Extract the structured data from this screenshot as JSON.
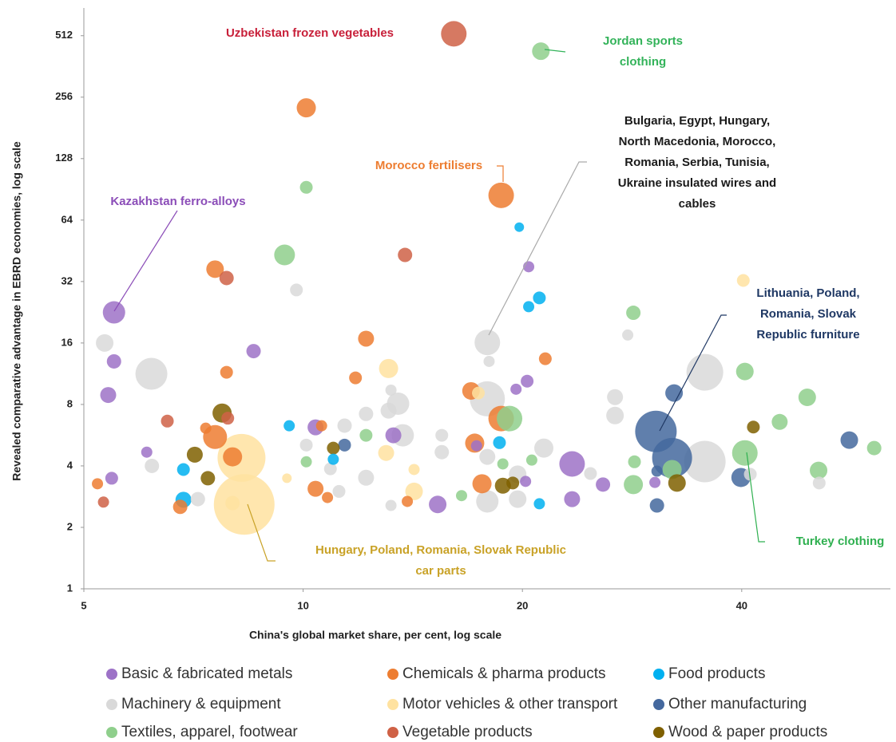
{
  "chart_data": {
    "type": "bubble",
    "x_label": "China's global market share, per cent, log scale",
    "y_label": "Revealed comparative advantage in EBRD economies, log scale",
    "xlog": true,
    "ylog": true,
    "xlim": [
      5,
      64
    ],
    "ylim": [
      1,
      700
    ],
    "xticks": [
      5,
      10,
      20,
      40
    ],
    "yticks": [
      1,
      2,
      4,
      8,
      16,
      32,
      64,
      128,
      256,
      512
    ],
    "series": [
      {
        "name": "Basic & fabricated metals",
        "color": "#9d72c7",
        "x": [
          5.5,
          5.5,
          5.4,
          5.46,
          6.1,
          8.55,
          10.4,
          13.3,
          15.3,
          17.3,
          19.6,
          20.3,
          20.4,
          20.2,
          23.4,
          23.4,
          25.8,
          30.4
        ],
        "values": [
          22.6,
          13.0,
          8.9,
          3.48,
          4.67,
          14.6,
          6.18,
          5.65,
          2.59,
          5.02,
          9.5,
          10.4,
          37.8,
          3.36,
          4.09,
          2.75,
          3.24,
          3.32
        ],
        "sizes": [
          14,
          9,
          10,
          8,
          7,
          9,
          10,
          10,
          11,
          7,
          7,
          8,
          7,
          7,
          16,
          10,
          9,
          7
        ]
      },
      {
        "name": "Chemicals & pharma products",
        "color": "#ed7d31",
        "x": [
          10.1,
          18.7,
          7.57,
          7.85,
          12.2,
          11.8,
          21.5,
          17.0,
          7.57,
          8.0,
          7.35,
          18.7,
          17.2,
          17.6,
          10.4,
          5.22,
          6.78,
          10.8,
          13.9,
          10.6
        ],
        "values": [
          227,
          84.6,
          36.8,
          11.5,
          16.8,
          10.8,
          13.4,
          9.32,
          5.54,
          4.43,
          6.12,
          6.82,
          5.17,
          3.27,
          3.09,
          3.27,
          2.52,
          2.8,
          2.68,
          6.29
        ],
        "sizes": [
          12,
          16,
          11,
          8,
          10,
          8,
          8,
          11,
          15,
          12,
          7,
          16,
          12,
          12,
          10,
          7,
          9,
          7,
          7,
          7
        ]
      },
      {
        "name": "Food products",
        "color": "#00b0f0",
        "x": [
          19.8,
          21.1,
          20.4,
          9.57,
          18.6,
          11.0,
          6.85,
          6.85,
          21.1
        ],
        "values": [
          59.1,
          26.6,
          24.1,
          6.29,
          5.2,
          4.31,
          3.84,
          2.73,
          2.61
        ],
        "sizes": [
          6,
          8,
          7,
          7,
          8,
          7,
          8,
          10,
          7
        ]
      },
      {
        "name": "Machinery & equipment",
        "color": "#d9d9d9",
        "x": [
          5.34,
          6.19,
          9.79,
          17.9,
          17.9,
          17.9,
          27.9,
          35.6,
          35.6,
          26.8,
          26.8,
          21.4,
          13.5,
          13.1,
          13.7,
          11.4,
          12.2,
          10.1,
          6.2,
          7.17,
          12.2,
          10.9,
          11.2,
          13.2,
          15.5,
          15.5,
          17.9,
          19.7,
          19.7,
          24.8,
          41.1,
          51.1,
          18.0,
          13.2
        ],
        "values": [
          16.0,
          11.3,
          29.1,
          16.1,
          8.52,
          2.68,
          17.5,
          11.5,
          4.2,
          8.69,
          7.06,
          4.89,
          8.07,
          7.46,
          5.65,
          6.3,
          7.19,
          5.06,
          4.0,
          2.75,
          3.5,
          3.87,
          3.0,
          2.56,
          5.65,
          4.67,
          4.43,
          3.64,
          2.75,
          3.67,
          3.64,
          3.3,
          13.0,
          9.4
        ],
        "sizes": [
          11,
          20,
          8,
          16,
          22,
          14,
          7,
          23,
          26,
          10,
          11,
          12,
          14,
          10,
          14,
          9,
          9,
          8,
          9,
          9,
          10,
          8,
          8,
          7,
          8,
          9,
          10,
          11,
          11,
          8,
          8,
          8,
          7,
          7
        ]
      },
      {
        "name": "Motor vehicles & other transport",
        "color": "#ffe2a0",
        "x": [
          8.23,
          8.3,
          13.1,
          13.0,
          40.2,
          14.2,
          14.2,
          9.5,
          8.0,
          17.4
        ],
        "values": [
          4.38,
          2.59,
          12.0,
          4.63,
          32.4,
          3.84,
          3.0,
          3.48,
          2.63,
          9.1
        ],
        "sizes": [
          30,
          38,
          12,
          10,
          8,
          7,
          11,
          6,
          9,
          8
        ]
      },
      {
        "name": "Other manufacturing",
        "color": "#44689e",
        "x": [
          30.5,
          32.1,
          32.3,
          56.2,
          39.9,
          30.6,
          11.4,
          30.6
        ],
        "values": [
          5.9,
          4.38,
          9.1,
          5.35,
          3.51,
          2.56,
          5.06,
          3.77
        ],
        "sizes": [
          26,
          25,
          11,
          11,
          12,
          9,
          8,
          7
        ]
      },
      {
        "name": "Textiles, apparel, footwear",
        "color": "#8fcf8c",
        "x": [
          21.2,
          10.1,
          9.43,
          28.4,
          40.4,
          49.2,
          45.1,
          19.2,
          12.2,
          40.4,
          60.8,
          51.0,
          32.1,
          28.5,
          28.4,
          10.1,
          18.8,
          20.6,
          16.5
        ],
        "values": [
          430,
          92.6,
          43.2,
          22.5,
          11.6,
          8.67,
          6.57,
          6.82,
          5.65,
          4.63,
          4.89,
          3.8,
          3.84,
          4.19,
          3.24,
          4.19,
          4.09,
          4.27,
          2.86
        ],
        "sizes": [
          11,
          8,
          13,
          9,
          11,
          11,
          10,
          16,
          8,
          16,
          9,
          11,
          12,
          8,
          12,
          7,
          7,
          7,
          7
        ]
      },
      {
        "name": "Vegetable products",
        "color": "#cf6146",
        "x": [
          16.1,
          13.8,
          7.85,
          6.51,
          5.32,
          7.88
        ],
        "values": [
          523,
          43.2,
          33.3,
          6.63,
          2.66,
          6.85
        ],
        "sizes": [
          16,
          9,
          9,
          8,
          7,
          8
        ]
      },
      {
        "name": "Wood & paper products",
        "color": "#7f6000",
        "x": [
          7.74,
          7.1,
          7.4,
          11.0,
          18.8,
          19.4,
          32.6,
          41.5
        ],
        "values": [
          7.26,
          4.54,
          3.48,
          4.89,
          3.2,
          3.3,
          3.3,
          6.2
        ],
        "sizes": [
          12,
          10,
          9,
          8,
          10,
          8,
          11,
          8
        ]
      }
    ],
    "annotations": [
      {
        "lines": [
          "Uzbekistan frozen vegetables"
        ],
        "color": "#c8203a"
      },
      {
        "lines": [
          "Jordan sports",
          "clothing"
        ],
        "color": "#33b35a"
      },
      {
        "lines": [
          "Bulgaria, Egypt, Hungary,",
          "North Macedonia, Morocco,",
          "Romania, Serbia, Tunisia,",
          "Ukraine insulated wires and",
          "cables"
        ],
        "color": "#1a1a1a"
      },
      {
        "lines": [
          "Morocco fertilisers"
        ],
        "color": "#ed7d31"
      },
      {
        "lines": [
          "Kazakhstan ferro-alloys"
        ],
        "color": "#8b4db8"
      },
      {
        "lines": [
          "Lithuania, Poland,",
          "Romania, Slovak",
          "Republic furniture"
        ],
        "color": "#1f3864"
      },
      {
        "lines": [
          "Turkey clothing"
        ],
        "color": "#2fb050"
      },
      {
        "lines": [
          "Hungary, Poland, Romania, Slovak Republic",
          "car parts"
        ],
        "color": "#c9a227"
      }
    ]
  }
}
